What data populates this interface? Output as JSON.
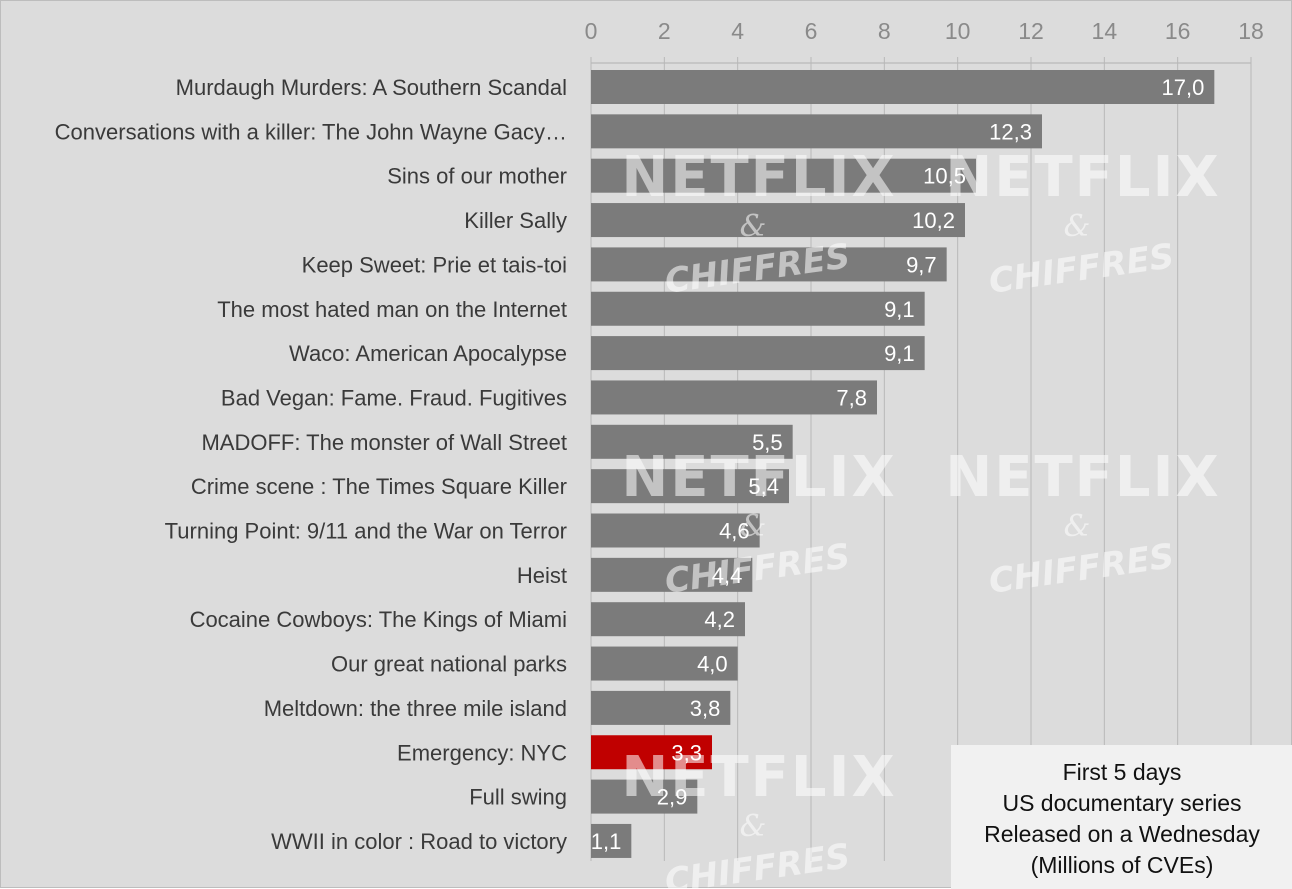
{
  "chart_data": {
    "type": "bar",
    "orientation": "horizontal",
    "categories": [
      "Murdaugh Murders: A Southern Scandal",
      "Conversations with a killer: The John Wayne Gacy…",
      "Sins of our mother",
      "Killer Sally",
      "Keep Sweet: Prie et tais-toi",
      "The most hated man on the Internet",
      "Waco: American Apocalypse",
      "Bad Vegan: Fame. Fraud. Fugitives",
      "MADOFF: The monster of Wall Street",
      "Crime scene : The Times Square Killer",
      "Turning Point: 9/11 and the War on Terror",
      "Heist",
      "Cocaine Cowboys: The Kings of Miami",
      "Our great national parks",
      "Meltdown: the three mile island",
      "Emergency: NYC",
      "Full swing",
      "WWII in color : Road to victory"
    ],
    "values": [
      17.0,
      12.3,
      10.5,
      10.2,
      9.7,
      9.1,
      9.1,
      7.8,
      5.5,
      5.4,
      4.6,
      4.4,
      4.2,
      4.0,
      3.8,
      3.3,
      2.9,
      1.1
    ],
    "value_labels": [
      "17,0",
      "12,3",
      "10,5",
      "10,2",
      "9,7",
      "9,1",
      "9,1",
      "7,8",
      "5,5",
      "5,4",
      "4,6",
      "4,4",
      "4,2",
      "4,0",
      "3,8",
      "3,3",
      "2,9",
      "1,1"
    ],
    "highlight_index": 15,
    "xlim": [
      0,
      18
    ],
    "xticks": [
      0,
      2,
      4,
      6,
      8,
      10,
      12,
      14,
      16,
      18
    ],
    "x_axis_position": "top",
    "grid": true,
    "legend_position": "bottom-right",
    "legend_lines": [
      "First 5 days",
      "US documentary series",
      "Released on a Wednesday",
      "(Millions of CVEs)"
    ],
    "colors": {
      "background": "#dcdcdc",
      "bar": "#7b7b7b",
      "highlight_bar": "#c00000",
      "gridline": "#b8b8b8",
      "legend_bg": "#f1f1f1"
    }
  },
  "watermark": {
    "title": "NETFLIX",
    "amp": "&",
    "sub": "CHIFFRES"
  }
}
